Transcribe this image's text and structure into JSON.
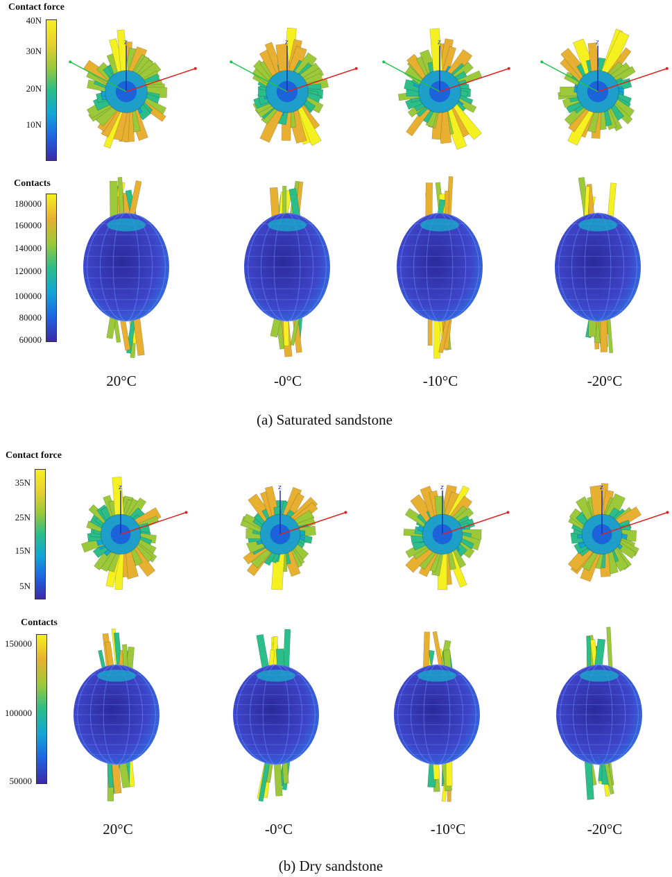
{
  "panels": [
    {
      "caption": "(a) Saturated sandstone",
      "force_colorbar": {
        "title": "Contact force",
        "ticks": [
          "40N",
          "30N",
          "20N",
          "10N"
        ]
      },
      "contacts_colorbar": {
        "title": "Contacts",
        "ticks": [
          "180000",
          "160000",
          "140000",
          "120000",
          "100000",
          "80000",
          "60000"
        ]
      },
      "temperatures": [
        "20°C",
        "-0°C",
        "-10°C",
        "-20°C"
      ]
    },
    {
      "caption": "(b) Dry sandstone",
      "force_colorbar": {
        "title": "Contact force",
        "ticks": [
          "35N",
          "25N",
          "15N",
          "5N"
        ]
      },
      "contacts_colorbar": {
        "title": "Contacts",
        "ticks": [
          "150000",
          "100000",
          "50000"
        ]
      },
      "temperatures": [
        "20°C",
        "-0°C",
        "-10°C",
        "-20°C"
      ]
    }
  ],
  "axis_label": "z",
  "colormap": [
    "#3b2aa8",
    "#1f63e0",
    "#11a6d6",
    "#2bbd8a",
    "#9cc93a",
    "#e8b030",
    "#f5f020"
  ]
}
